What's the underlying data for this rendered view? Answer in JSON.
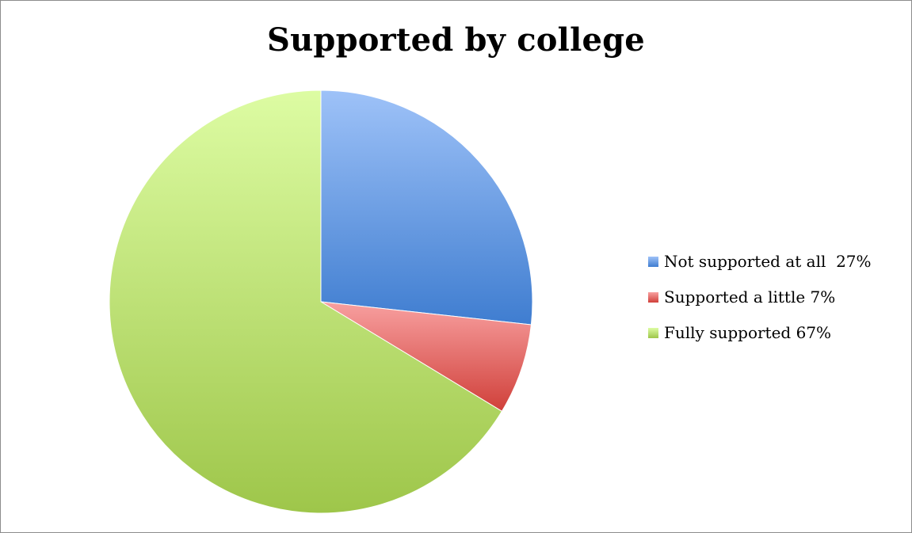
{
  "chart_data": {
    "type": "pie",
    "title": "Supported by college",
    "legend_position": "right",
    "slices": [
      {
        "label": "Not supported at all  27%",
        "value": 27,
        "color_light": "#9ec2f8",
        "color_dark": "#3f7dd0"
      },
      {
        "label": "Supported a little 7%",
        "value": 7,
        "color_light": "#f8a0a0",
        "color_dark": "#d0403a"
      },
      {
        "label": "Fully supported 67%",
        "value": 67,
        "color_light": "#ddfca3",
        "color_dark": "#9ec64a"
      }
    ]
  }
}
